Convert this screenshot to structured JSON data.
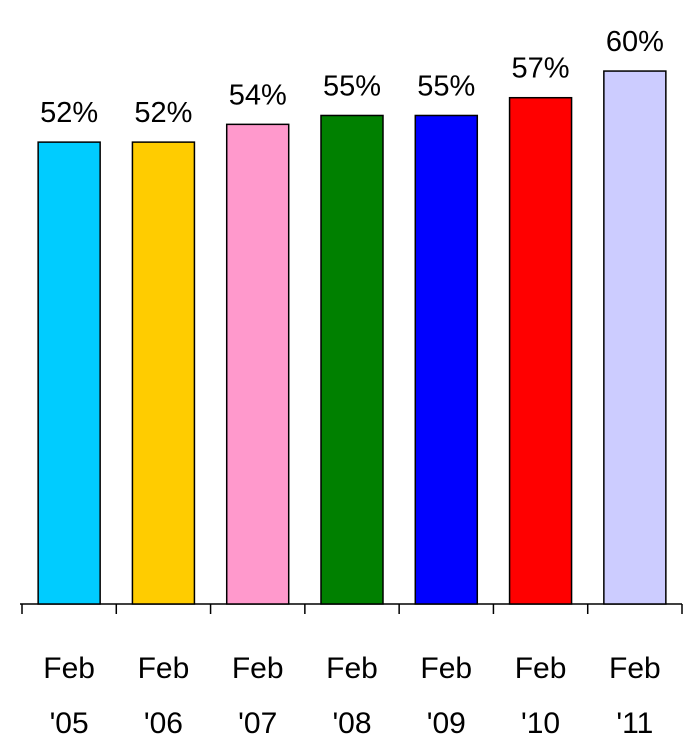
{
  "chart_data": {
    "type": "bar",
    "categories": [
      "Feb '05",
      "Feb '06",
      "Feb '07",
      "Feb '08",
      "Feb '09",
      "Feb '10",
      "Feb '11"
    ],
    "values": [
      52,
      52,
      54,
      55,
      55,
      57,
      60
    ],
    "value_labels": [
      "52%",
      "52%",
      "54%",
      "55%",
      "55%",
      "57%",
      "60%"
    ],
    "colors": [
      "#00ccff",
      "#ffcc00",
      "#ff99cc",
      "#008000",
      "#0000ff",
      "#ff0000",
      "#ccccff"
    ],
    "ylim": [
      0,
      68
    ]
  }
}
